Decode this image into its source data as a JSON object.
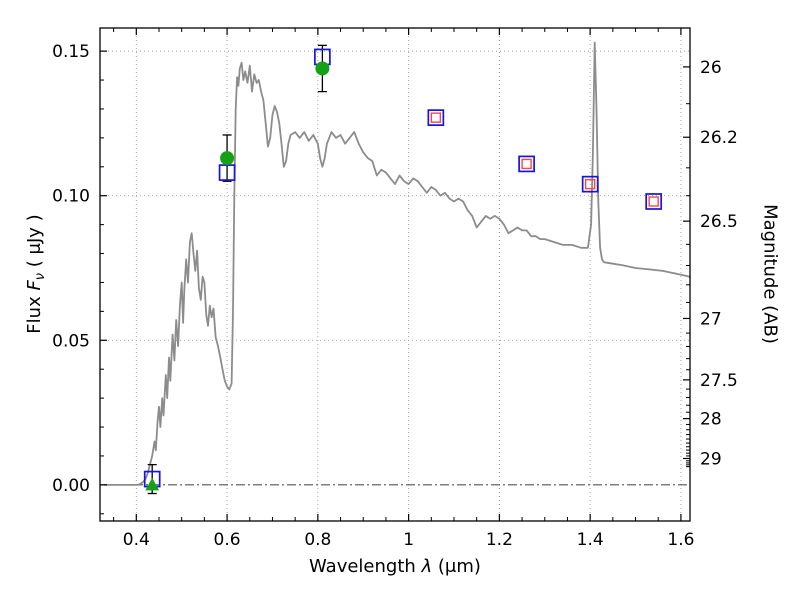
{
  "chart_data": {
    "type": "line",
    "title": "",
    "xlabel_parts": {
      "prefix": "Wavelength ",
      "lambda": "λ",
      "suffix": " (μm)"
    },
    "ylabel_left_parts": {
      "prefix": "Flux ",
      "f": "F",
      "nu": "ν",
      "suffix": " ( μJy )"
    },
    "ylabel_right": "Magnitude (AB)",
    "xlim": [
      0.32,
      1.62
    ],
    "ylim": [
      -0.0125,
      0.158
    ],
    "grid": true,
    "legend": "none",
    "ab_zeropoint": 23.9,
    "x_ticks": [
      {
        "v": 0.4,
        "label": "0.4"
      },
      {
        "v": 0.6,
        "label": "0.6"
      },
      {
        "v": 0.8,
        "label": "0.8"
      },
      {
        "v": 1.0,
        "label": "1"
      },
      {
        "v": 1.2,
        "label": "1.2"
      },
      {
        "v": 1.4,
        "label": "1.4"
      },
      {
        "v": 1.6,
        "label": "1.6"
      }
    ],
    "y_ticks": [
      {
        "v": 0.0,
        "label": "0.00"
      },
      {
        "v": 0.05,
        "label": "0.05"
      },
      {
        "v": 0.1,
        "label": "0.10"
      },
      {
        "v": 0.15,
        "label": "0.15"
      }
    ],
    "right_ticks": [
      {
        "m": 26.0,
        "label": "26"
      },
      {
        "m": 26.2,
        "label": "26.2"
      },
      {
        "m": 26.5,
        "label": "26.5"
      },
      {
        "m": 27.0,
        "label": "27"
      },
      {
        "m": 27.5,
        "label": "27.5"
      },
      {
        "m": 28.0,
        "label": "28"
      },
      {
        "m": 29.0,
        "label": "29"
      }
    ],
    "colors": {
      "spectrum": "#8c8c8c",
      "model_square": "#1515dd",
      "inner_square": "#ff4444",
      "observed": "#16a016",
      "error_bar": "#000000",
      "grid": "#9a9a9a",
      "zero_line": "#555555",
      "frame": "#000000"
    },
    "spectrum": [
      [
        0.33,
        0.0
      ],
      [
        0.36,
        0.0
      ],
      [
        0.39,
        0.0
      ],
      [
        0.405,
        0.0
      ],
      [
        0.415,
        0.001
      ],
      [
        0.42,
        0.002
      ],
      [
        0.425,
        0.004
      ],
      [
        0.43,
        0.007
      ],
      [
        0.435,
        0.01
      ],
      [
        0.44,
        0.015
      ],
      [
        0.443,
        0.012
      ],
      [
        0.447,
        0.022
      ],
      [
        0.45,
        0.027
      ],
      [
        0.453,
        0.02
      ],
      [
        0.457,
        0.03
      ],
      [
        0.46,
        0.024
      ],
      [
        0.465,
        0.038
      ],
      [
        0.468,
        0.03
      ],
      [
        0.472,
        0.044
      ],
      [
        0.475,
        0.036
      ],
      [
        0.48,
        0.052
      ],
      [
        0.484,
        0.043
      ],
      [
        0.488,
        0.057
      ],
      [
        0.492,
        0.048
      ],
      [
        0.496,
        0.062
      ],
      [
        0.5,
        0.07
      ],
      [
        0.503,
        0.056
      ],
      [
        0.506,
        0.068
      ],
      [
        0.51,
        0.078
      ],
      [
        0.514,
        0.07
      ],
      [
        0.518,
        0.084
      ],
      [
        0.522,
        0.087
      ],
      [
        0.526,
        0.08
      ],
      [
        0.53,
        0.074
      ],
      [
        0.534,
        0.081
      ],
      [
        0.538,
        0.068
      ],
      [
        0.542,
        0.064
      ],
      [
        0.546,
        0.072
      ],
      [
        0.55,
        0.07
      ],
      [
        0.554,
        0.059
      ],
      [
        0.558,
        0.055
      ],
      [
        0.562,
        0.062
      ],
      [
        0.566,
        0.058
      ],
      [
        0.57,
        0.061
      ],
      [
        0.575,
        0.051
      ],
      [
        0.58,
        0.048
      ],
      [
        0.585,
        0.044
      ],
      [
        0.59,
        0.04
      ],
      [
        0.595,
        0.036
      ],
      [
        0.6,
        0.034
      ],
      [
        0.605,
        0.033
      ],
      [
        0.61,
        0.035
      ],
      [
        0.613,
        0.06
      ],
      [
        0.616,
        0.1
      ],
      [
        0.619,
        0.13
      ],
      [
        0.622,
        0.141
      ],
      [
        0.625,
        0.138
      ],
      [
        0.628,
        0.144
      ],
      [
        0.632,
        0.146
      ],
      [
        0.636,
        0.14
      ],
      [
        0.64,
        0.143
      ],
      [
        0.645,
        0.139
      ],
      [
        0.65,
        0.145
      ],
      [
        0.655,
        0.136
      ],
      [
        0.66,
        0.142
      ],
      [
        0.665,
        0.139
      ],
      [
        0.67,
        0.14
      ],
      [
        0.675,
        0.136
      ],
      [
        0.68,
        0.133
      ],
      [
        0.685,
        0.125
      ],
      [
        0.69,
        0.117
      ],
      [
        0.695,
        0.12
      ],
      [
        0.7,
        0.128
      ],
      [
        0.705,
        0.131
      ],
      [
        0.71,
        0.129
      ],
      [
        0.715,
        0.125
      ],
      [
        0.72,
        0.118
      ],
      [
        0.725,
        0.11
      ],
      [
        0.73,
        0.112
      ],
      [
        0.735,
        0.118
      ],
      [
        0.74,
        0.121
      ],
      [
        0.75,
        0.122
      ],
      [
        0.76,
        0.12
      ],
      [
        0.77,
        0.122
      ],
      [
        0.78,
        0.119
      ],
      [
        0.79,
        0.121
      ],
      [
        0.8,
        0.118
      ],
      [
        0.805,
        0.113
      ],
      [
        0.81,
        0.11
      ],
      [
        0.815,
        0.113
      ],
      [
        0.82,
        0.118
      ],
      [
        0.83,
        0.122
      ],
      [
        0.84,
        0.12
      ],
      [
        0.85,
        0.121
      ],
      [
        0.86,
        0.118
      ],
      [
        0.87,
        0.12
      ],
      [
        0.88,
        0.122
      ],
      [
        0.89,
        0.118
      ],
      [
        0.9,
        0.115
      ],
      [
        0.91,
        0.113
      ],
      [
        0.92,
        0.112
      ],
      [
        0.93,
        0.107
      ],
      [
        0.94,
        0.109
      ],
      [
        0.95,
        0.108
      ],
      [
        0.96,
        0.106
      ],
      [
        0.97,
        0.104
      ],
      [
        0.98,
        0.107
      ],
      [
        0.99,
        0.105
      ],
      [
        1.0,
        0.104
      ],
      [
        1.01,
        0.106
      ],
      [
        1.02,
        0.105
      ],
      [
        1.03,
        0.103
      ],
      [
        1.04,
        0.101
      ],
      [
        1.05,
        0.103
      ],
      [
        1.06,
        0.102
      ],
      [
        1.07,
        0.1
      ],
      [
        1.08,
        0.101
      ],
      [
        1.09,
        0.099
      ],
      [
        1.1,
        0.098
      ],
      [
        1.11,
        0.099
      ],
      [
        1.12,
        0.098
      ],
      [
        1.13,
        0.095
      ],
      [
        1.14,
        0.093
      ],
      [
        1.15,
        0.089
      ],
      [
        1.16,
        0.091
      ],
      [
        1.17,
        0.093
      ],
      [
        1.18,
        0.092
      ],
      [
        1.19,
        0.093
      ],
      [
        1.2,
        0.092
      ],
      [
        1.21,
        0.09
      ],
      [
        1.22,
        0.087
      ],
      [
        1.23,
        0.088
      ],
      [
        1.24,
        0.089
      ],
      [
        1.25,
        0.088
      ],
      [
        1.26,
        0.088
      ],
      [
        1.27,
        0.086
      ],
      [
        1.28,
        0.086
      ],
      [
        1.29,
        0.085
      ],
      [
        1.3,
        0.085
      ],
      [
        1.32,
        0.084
      ],
      [
        1.34,
        0.083
      ],
      [
        1.36,
        0.083
      ],
      [
        1.38,
        0.082
      ],
      [
        1.395,
        0.082
      ],
      [
        1.402,
        0.09
      ],
      [
        1.406,
        0.115
      ],
      [
        1.41,
        0.153
      ],
      [
        1.414,
        0.13
      ],
      [
        1.418,
        0.098
      ],
      [
        1.422,
        0.082
      ],
      [
        1.426,
        0.078
      ],
      [
        1.43,
        0.077
      ],
      [
        1.45,
        0.0765
      ],
      [
        1.47,
        0.076
      ],
      [
        1.5,
        0.075
      ],
      [
        1.53,
        0.0745
      ],
      [
        1.56,
        0.074
      ],
      [
        1.59,
        0.073
      ],
      [
        1.62,
        0.072
      ]
    ],
    "model_squares": [
      {
        "x": 0.435,
        "y": 0.002,
        "red_inner": false
      },
      {
        "x": 0.6,
        "y": 0.108,
        "red_inner": false
      },
      {
        "x": 0.81,
        "y": 0.148,
        "red_inner": false
      },
      {
        "x": 1.06,
        "y": 0.127,
        "red_inner": true
      },
      {
        "x": 1.26,
        "y": 0.111,
        "red_inner": true
      },
      {
        "x": 1.4,
        "y": 0.104,
        "red_inner": true
      },
      {
        "x": 1.54,
        "y": 0.098,
        "red_inner": true
      }
    ],
    "observed_points": [
      {
        "x": 0.6,
        "y": 0.113,
        "yerr": 0.008
      },
      {
        "x": 0.81,
        "y": 0.144,
        "yerr": 0.008
      }
    ],
    "upper_limit": {
      "x": 0.435,
      "y": 0.0,
      "err_center": 0.002,
      "yerr": 0.005
    }
  }
}
